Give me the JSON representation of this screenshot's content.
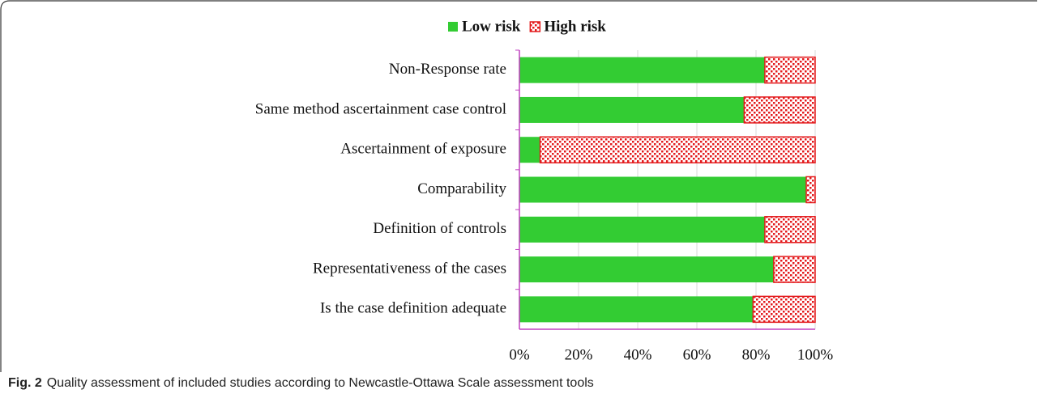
{
  "chart_data": {
    "type": "stacked_barh",
    "categories": [
      "Non-Response rate",
      "Same method ascertainment case control",
      "Ascertainment of exposure",
      "Comparability",
      "Definition of controls",
      "Representativeness of the cases",
      "Is the case definition adequate"
    ],
    "series": [
      {
        "name": "Low risk",
        "color": "#33cc33",
        "values": [
          83,
          76,
          7,
          97,
          83,
          86,
          79
        ]
      },
      {
        "name": "High risk",
        "color": "#e31a1c",
        "values": [
          17,
          24,
          93,
          3,
          17,
          14,
          21
        ]
      }
    ],
    "xlim": [
      0,
      100
    ],
    "xticks": [
      {
        "value": 0,
        "label": "0%"
      },
      {
        "value": 20,
        "label": "20%"
      },
      {
        "value": 40,
        "label": "40%"
      },
      {
        "value": 60,
        "label": "60%"
      },
      {
        "value": 80,
        "label": "80%"
      },
      {
        "value": 100,
        "label": "100%"
      }
    ],
    "grid": true,
    "legend": "top"
  },
  "caption": {
    "label": "Fig. 2",
    "text": "Quality assessment of included studies according to Newcastle-Ottawa Scale assessment tools"
  }
}
